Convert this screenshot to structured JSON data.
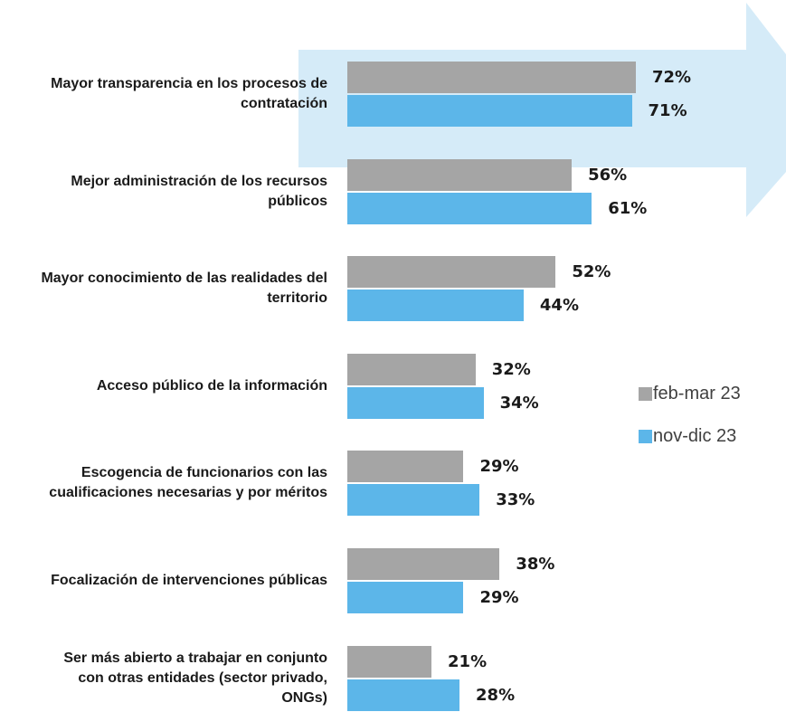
{
  "chart_data": {
    "type": "barh",
    "categories": [
      "Mayor transparencia en los procesos de contratación",
      "Mejor administración de los recursos públicos",
      "Mayor conocimiento de las realidades del territorio",
      "Acceso público de la información",
      "Escogencia de funcionarios con las cualificaciones necesarias y por méritos",
      "Focalización de intervenciones públicas",
      "Ser más abierto a trabajar en conjunto con otras entidades (sector privado, ONGs)"
    ],
    "series": [
      {
        "name": "feb-mar 23",
        "color": "#a5a5a5",
        "values": [
          72,
          56,
          52,
          32,
          29,
          38,
          21
        ],
        "value_labels": [
          "72%",
          "56%",
          "52%",
          "32%",
          "29%",
          "38%",
          "21%"
        ]
      },
      {
        "name": "nov-dic 23",
        "color": "#5cb6e9",
        "values": [
          71,
          61,
          44,
          34,
          33,
          29,
          28
        ],
        "value_labels": [
          "71%",
          "61%",
          "44%",
          "34%",
          "33%",
          "29%",
          "28%"
        ]
      }
    ],
    "xlim": [
      0,
      100
    ],
    "legend": "right"
  }
}
